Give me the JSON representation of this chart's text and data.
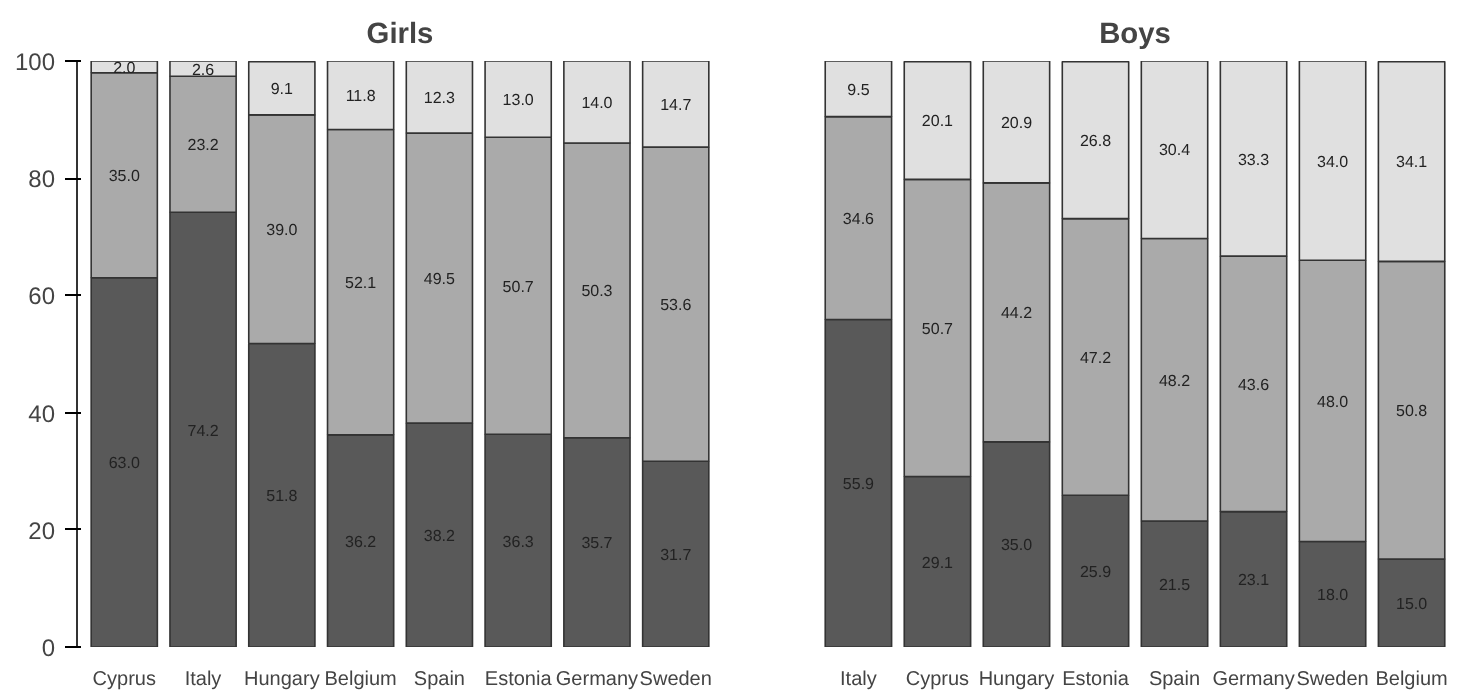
{
  "chart_data": [
    {
      "type": "bar",
      "title": "Girls",
      "stacked": true,
      "ylim": [
        0,
        100
      ],
      "yticks": [
        0,
        20,
        40,
        60,
        80,
        100
      ],
      "grid": false,
      "categories": [
        "Cyprus",
        "Italy",
        "Hungary",
        "Belgium",
        "Spain",
        "Estonia",
        "Germany",
        "Sweden"
      ],
      "series": [
        {
          "color": "#595959",
          "values": [
            63.0,
            74.2,
            51.8,
            36.2,
            38.2,
            36.3,
            35.7,
            31.7
          ],
          "value_labels": [
            "63.0",
            "74.2",
            "51.8",
            "36.2",
            "38.2",
            "36.3",
            "35.7",
            "31.7"
          ]
        },
        {
          "color": "#aaaaaa",
          "values": [
            35.0,
            23.2,
            39.0,
            52.1,
            49.5,
            50.7,
            50.3,
            53.6
          ],
          "value_labels": [
            "35.0",
            "23.2",
            "39.0",
            "52.1",
            "49.5",
            "50.7",
            "50.3",
            "53.6"
          ]
        },
        {
          "color": "#e0e0e0",
          "values": [
            2.0,
            2.6,
            9.1,
            11.8,
            12.3,
            13.0,
            14.0,
            14.7
          ],
          "value_labels": [
            "2.0",
            "2.6",
            "9.1",
            "11.8",
            "12.3",
            "13.0",
            "14.0",
            "14.7"
          ]
        }
      ]
    },
    {
      "type": "bar",
      "title": "Boys",
      "stacked": true,
      "ylim": [
        0,
        100
      ],
      "tick_labels": "x",
      "grid": false,
      "categories": [
        "Italy",
        "Cyprus",
        "Hungary",
        "Estonia",
        "Spain",
        "Germany",
        "Sweden",
        "Belgium"
      ],
      "series": [
        {
          "color": "#595959",
          "values": [
            55.9,
            29.1,
            35.0,
            25.9,
            21.5,
            23.1,
            18.0,
            15.0
          ],
          "value_labels": [
            "55.9",
            "29.1",
            "35.0",
            "25.9",
            "21.5",
            "23.1",
            "18.0",
            "15.0"
          ]
        },
        {
          "color": "#aaaaaa",
          "values": [
            34.6,
            50.7,
            44.2,
            47.2,
            48.2,
            43.6,
            48.0,
            50.8
          ],
          "value_labels": [
            "34.6",
            "50.7",
            "44.2",
            "47.2",
            "48.2",
            "43.6",
            "48.0",
            "50.8"
          ]
        },
        {
          "color": "#e0e0e0",
          "values": [
            9.5,
            20.1,
            20.9,
            26.8,
            30.4,
            33.3,
            34.0,
            34.1
          ],
          "value_labels": [
            "9.5",
            "20.1",
            "20.9",
            "26.8",
            "30.4",
            "33.3",
            "34.0",
            "34.1"
          ]
        }
      ]
    }
  ]
}
